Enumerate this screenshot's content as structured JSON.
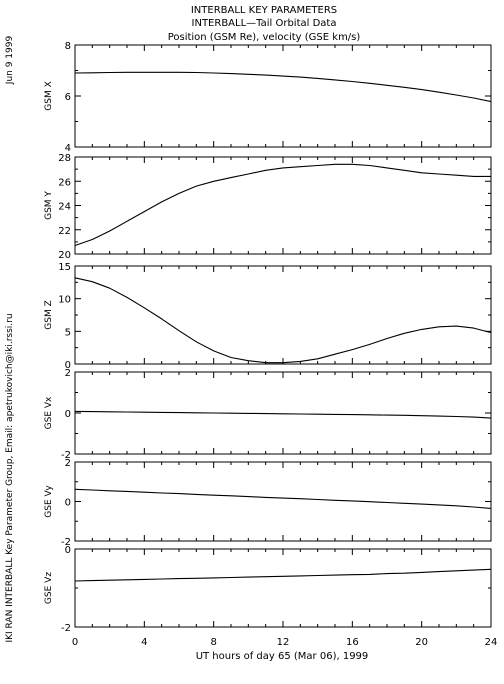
{
  "header": {
    "date": "Jun  9 1999",
    "title_lines": [
      "INTERBALL KEY PARAMETERS",
      "INTERBALL—Tail Orbital Data",
      "Position (GSM Re), velocity (GSE km/s)"
    ],
    "credit": "IKI RAN INTERBALL Key Parameter Group, Email: apetrukovich@iki.rssi.ru"
  },
  "chart_data": {
    "type": "line",
    "xlabel": "UT hours of day  65 (Mar 06), 1999",
    "x_range": [
      0,
      24
    ],
    "x_ticks": [
      0,
      4,
      8,
      12,
      16,
      20,
      24
    ],
    "x": [
      0,
      1,
      2,
      3,
      4,
      5,
      6,
      7,
      8,
      9,
      10,
      11,
      12,
      13,
      14,
      15,
      16,
      17,
      18,
      19,
      20,
      21,
      22,
      23,
      24
    ],
    "panels": [
      {
        "ylabel": "GSM X",
        "ylim": [
          4,
          8
        ],
        "yticks": [
          4,
          6,
          8
        ],
        "values": [
          6.9,
          6.91,
          6.92,
          6.93,
          6.93,
          6.93,
          6.93,
          6.92,
          6.9,
          6.88,
          6.85,
          6.82,
          6.78,
          6.74,
          6.69,
          6.63,
          6.57,
          6.5,
          6.42,
          6.34,
          6.25,
          6.15,
          6.04,
          5.92,
          5.78
        ]
      },
      {
        "ylabel": "GSM Y",
        "ylim": [
          20,
          28
        ],
        "yticks": [
          20,
          22,
          24,
          26,
          28
        ],
        "values": [
          20.7,
          21.2,
          21.9,
          22.7,
          23.5,
          24.3,
          25.0,
          25.6,
          26.0,
          26.3,
          26.6,
          26.9,
          27.1,
          27.2,
          27.3,
          27.4,
          27.4,
          27.3,
          27.1,
          26.9,
          26.7,
          26.6,
          26.5,
          26.4,
          26.4
        ]
      },
      {
        "ylabel": "GSM Z",
        "ylim": [
          0,
          15
        ],
        "yticks": [
          0,
          5,
          10,
          15
        ],
        "values": [
          13.2,
          12.6,
          11.6,
          10.2,
          8.6,
          6.9,
          5.1,
          3.4,
          2.0,
          1.0,
          0.5,
          0.2,
          0.2,
          0.4,
          0.8,
          1.5,
          2.2,
          3.0,
          3.9,
          4.7,
          5.3,
          5.7,
          5.8,
          5.5,
          4.8
        ]
      },
      {
        "ylabel": "GSE Vx",
        "ylim": [
          -2,
          2
        ],
        "yticks": [
          -2,
          0,
          2
        ],
        "values": [
          0.08,
          0.07,
          0.06,
          0.05,
          0.04,
          0.03,
          0.02,
          0.01,
          0.0,
          -0.01,
          -0.02,
          -0.03,
          -0.04,
          -0.05,
          -0.06,
          -0.07,
          -0.08,
          -0.09,
          -0.1,
          -0.11,
          -0.13,
          -0.15,
          -0.17,
          -0.2,
          -0.25
        ]
      },
      {
        "ylabel": "GSE Vy",
        "ylim": [
          -2,
          2
        ],
        "yticks": [
          -2,
          0,
          2
        ],
        "values": [
          0.62,
          0.58,
          0.54,
          0.51,
          0.47,
          0.43,
          0.4,
          0.36,
          0.32,
          0.29,
          0.25,
          0.21,
          0.17,
          0.14,
          0.1,
          0.06,
          0.03,
          -0.01,
          -0.05,
          -0.09,
          -0.13,
          -0.17,
          -0.22,
          -0.28,
          -0.35
        ]
      },
      {
        "ylabel": "GSE Vz",
        "ylim": [
          -2,
          0
        ],
        "yticks": [
          -2,
          0
        ],
        "values": [
          -0.82,
          -0.81,
          -0.8,
          -0.79,
          -0.78,
          -0.77,
          -0.76,
          -0.75,
          -0.74,
          -0.73,
          -0.72,
          -0.71,
          -0.7,
          -0.69,
          -0.68,
          -0.67,
          -0.66,
          -0.65,
          -0.63,
          -0.62,
          -0.6,
          -0.58,
          -0.56,
          -0.54,
          -0.52
        ]
      }
    ]
  }
}
